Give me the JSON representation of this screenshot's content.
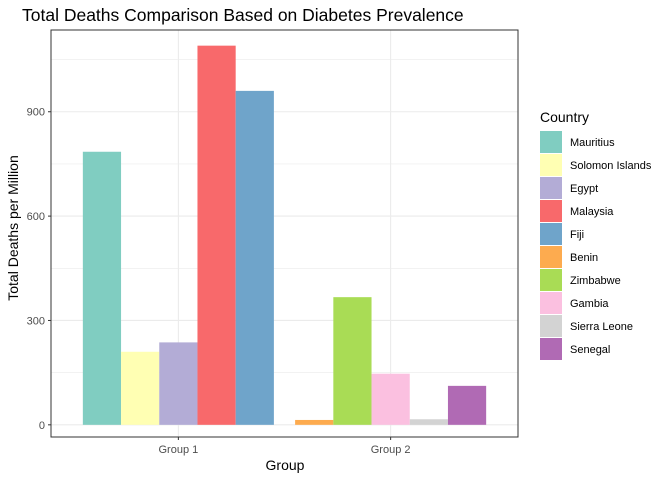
{
  "chart_data": {
    "type": "bar",
    "title": "Total Deaths Comparison Based on Diabetes Prevalence",
    "xlabel": "Group",
    "ylabel": "Total Deaths per Million",
    "categories": [
      "Group 1",
      "Group 2"
    ],
    "ylim": [
      -35,
      1135
    ],
    "yticks": [
      0,
      300,
      600,
      900
    ],
    "grid": true,
    "legend_title": "Country",
    "legend_position": "right",
    "series": [
      {
        "name": "Mauritius",
        "group": "Group 1",
        "value": 785,
        "color": "#80cdc1"
      },
      {
        "name": "Solomon Islands",
        "group": "Group 1",
        "value": 210,
        "color": "#ffffb3"
      },
      {
        "name": "Egypt",
        "group": "Group 1",
        "value": 237,
        "color": "#b3acd6"
      },
      {
        "name": "Malaysia",
        "group": "Group 1",
        "value": 1090,
        "color": "#f8696b"
      },
      {
        "name": "Fiji",
        "group": "Group 1",
        "value": 960,
        "color": "#6fa4ca"
      },
      {
        "name": "Benin",
        "group": "Group 2",
        "value": 14,
        "color": "#fdab4f"
      },
      {
        "name": "Zimbabwe",
        "group": "Group 2",
        "value": 367,
        "color": "#a9dc55"
      },
      {
        "name": "Gambia",
        "group": "Group 2",
        "value": 147,
        "color": "#fbc0e0"
      },
      {
        "name": "Sierra Leone",
        "group": "Group 2",
        "value": 16,
        "color": "#d3d3d3"
      },
      {
        "name": "Senegal",
        "group": "Group 2",
        "value": 112,
        "color": "#b06ab4"
      }
    ]
  }
}
